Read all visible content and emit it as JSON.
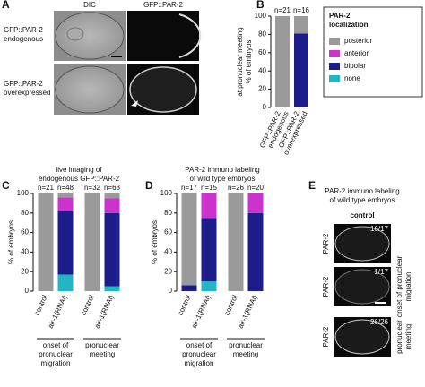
{
  "panel_labels": [
    "A",
    "B",
    "C",
    "D",
    "E"
  ],
  "panel_a": {
    "columns": [
      "DIC",
      "GFP::PAR-2"
    ],
    "rows": [
      [
        "GFP::PAR-2",
        "endogenous"
      ],
      [
        "GFP::PAR-2",
        "overexpressed"
      ]
    ]
  },
  "panel_e": {
    "title": [
      "PAR-2 immuno labeling",
      "of wild type embryos"
    ],
    "column": "control",
    "stain_labels": [
      "PAR-2",
      "PAR-2",
      "PAR-2"
    ],
    "fractions": [
      "16/17",
      "1/17",
      "26/26"
    ],
    "stage_labels": [
      [
        "onset of pronuclear",
        "migration"
      ],
      [
        "pronuclear",
        "meeting"
      ]
    ]
  },
  "chart_data": [
    {
      "type": "bar",
      "stacked": true,
      "ylabel": [
        "% of embryos",
        "at pronuclear meeting"
      ],
      "categories": [
        [
          "GFP::PAR-2",
          "endogenous"
        ],
        [
          "GFP::PAR-2",
          "overexpressed"
        ]
      ],
      "n_labels": [
        "n=21",
        "n=16"
      ],
      "legend_title": [
        "PAR-2",
        "localization"
      ],
      "ylim": [
        0,
        100
      ],
      "yticks": [
        0,
        20,
        40,
        60,
        80,
        100
      ],
      "series": [
        {
          "name": "posterior",
          "color": "#9a9a9a",
          "values": [
            100,
            19
          ]
        },
        {
          "name": "anterior",
          "color": "#cc33cc",
          "values": [
            0,
            0
          ]
        },
        {
          "name": "bipolar",
          "color": "#1c1c8a",
          "values": [
            0,
            81
          ]
        },
        {
          "name": "none",
          "color": "#22b5c4",
          "values": [
            0,
            0
          ]
        }
      ]
    },
    {
      "type": "bar",
      "stacked": true,
      "title": [
        "live imaging of",
        "endogenous GFP::PAR-2"
      ],
      "ylabel": [
        "% of embryos"
      ],
      "categories": [
        [
          "control"
        ],
        [
          "air-1(RNAi)"
        ],
        [
          "control"
        ],
        [
          "air-1(RNAi)"
        ]
      ],
      "n_labels": [
        "n=21",
        "n=48",
        "n=32",
        "n=63"
      ],
      "groups": [
        [
          "onset of",
          "pronuclear",
          "migration"
        ],
        [
          "pronuclear",
          "meeting"
        ]
      ],
      "ylim": [
        0,
        100
      ],
      "yticks": [
        0,
        20,
        40,
        60,
        80,
        100
      ],
      "series": [
        {
          "name": "posterior",
          "color": "#9a9a9a",
          "values": [
            100,
            4,
            100,
            5
          ]
        },
        {
          "name": "anterior",
          "color": "#cc33cc",
          "values": [
            0,
            14,
            0,
            15
          ]
        },
        {
          "name": "bipolar",
          "color": "#1c1c8a",
          "values": [
            0,
            65,
            0,
            75
          ]
        },
        {
          "name": "none",
          "color": "#22b5c4",
          "values": [
            0,
            17,
            0,
            5
          ]
        }
      ]
    },
    {
      "type": "bar",
      "stacked": true,
      "title": [
        "PAR-2 immuno labeling",
        "of wild type embryos"
      ],
      "ylabel": [
        "% of embryos"
      ],
      "categories": [
        [
          "control"
        ],
        [
          "air-1(RNAi)"
        ],
        [
          "control"
        ],
        [
          "air-1(RNAi)"
        ]
      ],
      "n_labels": [
        "n=17",
        "n=15",
        "n=26",
        "n=20"
      ],
      "groups": [
        [
          "onset of",
          "pronuclear",
          "migration"
        ],
        [
          "pronuclear",
          "meeting"
        ]
      ],
      "ylim": [
        0,
        100
      ],
      "yticks": [
        0,
        20,
        40,
        60,
        80,
        100
      ],
      "series": [
        {
          "name": "posterior",
          "color": "#9a9a9a",
          "values": [
            94,
            0,
            100,
            0
          ]
        },
        {
          "name": "anterior",
          "color": "#cc33cc",
          "values": [
            0,
            25,
            0,
            20
          ]
        },
        {
          "name": "bipolar",
          "color": "#1c1c8a",
          "values": [
            6,
            65,
            0,
            80
          ]
        },
        {
          "name": "none",
          "color": "#22b5c4",
          "values": [
            0,
            10,
            0,
            0
          ]
        }
      ]
    }
  ]
}
